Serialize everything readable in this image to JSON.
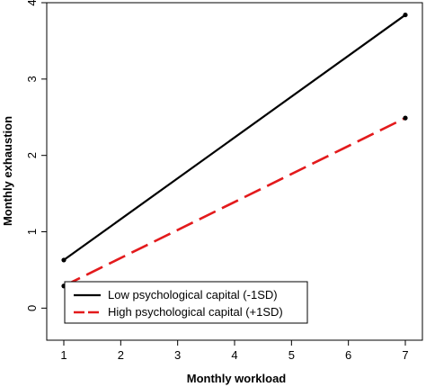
{
  "chart_data": {
    "type": "line",
    "xlabel": "Monthly workload",
    "ylabel": "Monthly exhaustion",
    "xlim": [
      0.7,
      7.3
    ],
    "ylim": [
      -0.42,
      4.0
    ],
    "xticks": [
      1,
      2,
      3,
      4,
      5,
      6,
      7
    ],
    "yticks": [
      0,
      1,
      2,
      3,
      4
    ],
    "grid": false,
    "legend_position": "bottom-left",
    "series": [
      {
        "name": "Low psychological capital (-1SD)",
        "color": "#000000",
        "dash": "solid",
        "x": [
          1,
          7
        ],
        "y": [
          0.63,
          3.84
        ]
      },
      {
        "name": "High psychological capital (+1SD)",
        "color": "#e31a1c",
        "dash": "dashed",
        "x": [
          1,
          7
        ],
        "y": [
          0.29,
          2.49
        ]
      }
    ]
  }
}
